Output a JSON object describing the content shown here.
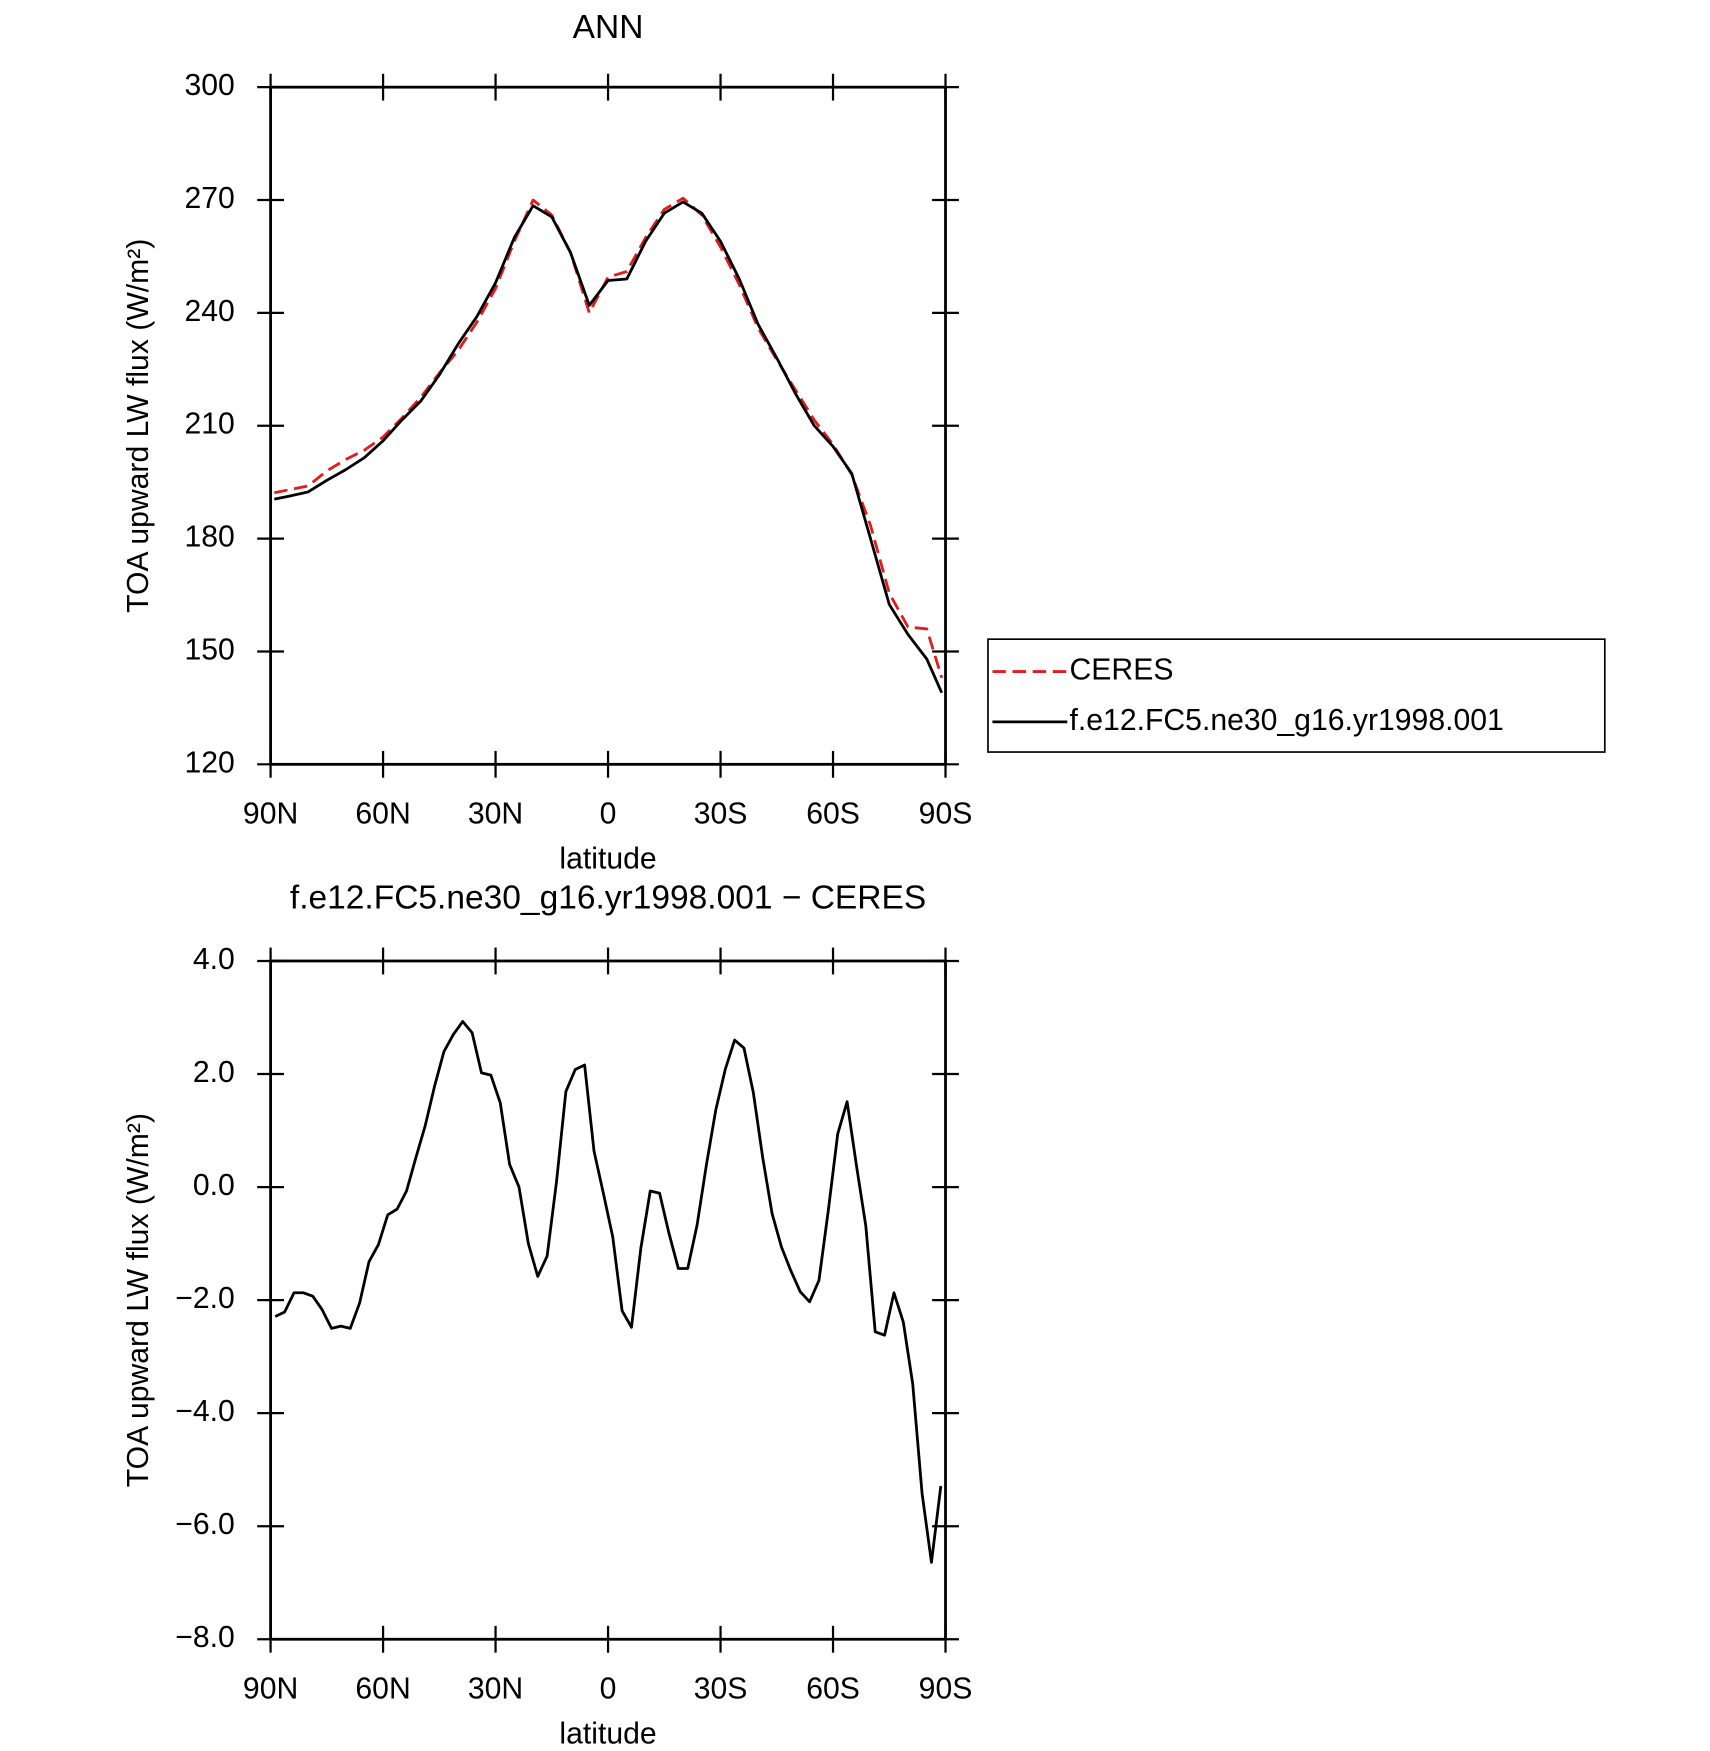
{
  "chart_data": [
    {
      "type": "line",
      "title": "ANN",
      "xlabel": "latitude",
      "ylabel": "TOA upward LW flux (W/m²)",
      "x": [
        89,
        85,
        80,
        75,
        70,
        65,
        60,
        55,
        50,
        45,
        40,
        35,
        30,
        25,
        20,
        15,
        10,
        5,
        0,
        -5,
        -10,
        -15,
        -20,
        -25,
        -30,
        -35,
        -40,
        -45,
        -50,
        -55,
        -60,
        -65,
        -70,
        -75,
        -80,
        -85,
        -89
      ],
      "series": [
        {
          "name": "CERES",
          "color": "#e41a1c",
          "style": "dashed",
          "values": [
            192.2,
            193,
            194,
            198,
            201,
            203.5,
            207,
            212,
            217.5,
            224,
            230,
            237.5,
            246.5,
            259,
            270,
            266,
            256,
            240,
            249.5,
            251,
            260,
            267.5,
            270.5,
            266,
            257.5,
            247.5,
            236,
            227.5,
            219.5,
            211.5,
            205,
            197,
            183.5,
            165.5,
            156.5,
            156,
            143
          ]
        },
        {
          "name": "f.e12.FC5.ne30_g16.yr1998.001",
          "color": "#000000",
          "style": "solid",
          "values": [
            190.5,
            191.3,
            192.4,
            195.5,
            198.3,
            201.5,
            206,
            211.5,
            216.5,
            223.5,
            231.7,
            239,
            248,
            260,
            268.5,
            265.5,
            256,
            242,
            248.6,
            249,
            259,
            266.5,
            269.5,
            266.5,
            259,
            249,
            237,
            228,
            218.5,
            210,
            204.5,
            197.3,
            180,
            162.5,
            154.5,
            148,
            139
          ]
        }
      ],
      "xlim": [
        90,
        -90
      ],
      "xticks": [
        {
          "value": 90,
          "label": "90N"
        },
        {
          "value": 60,
          "label": "60N"
        },
        {
          "value": 30,
          "label": "30N"
        },
        0,
        {
          "value": -30,
          "label": "30S"
        },
        {
          "value": -60,
          "label": "60S"
        },
        {
          "value": -90,
          "label": "90S"
        }
      ],
      "ylim": [
        120,
        300
      ],
      "yticks": [
        120,
        150,
        180,
        210,
        240,
        270,
        300
      ],
      "legend": "right"
    },
    {
      "type": "line",
      "title": "f.e12.FC5.ne30_g16.yr1998.001 − CERES",
      "xlabel": "latitude",
      "ylabel": "TOA upward LW flux (W/m²)",
      "x": [
        88.75,
        86.25,
        83.75,
        81.25,
        78.75,
        76.25,
        73.75,
        71.25,
        68.75,
        66.25,
        63.75,
        61.25,
        58.75,
        56.25,
        53.75,
        51.25,
        48.75,
        46.25,
        43.75,
        41.25,
        38.75,
        36.25,
        33.75,
        31.25,
        28.75,
        26.25,
        23.75,
        21.25,
        18.75,
        16.25,
        13.75,
        11.25,
        8.75,
        6.25,
        3.75,
        1.25,
        -1.25,
        -3.75,
        -6.25,
        -8.75,
        -11.25,
        -13.75,
        -16.25,
        -18.75,
        -21.25,
        -23.75,
        -26.25,
        -28.75,
        -31.25,
        -33.75,
        -36.25,
        -38.75,
        -41.25,
        -43.75,
        -46.25,
        -48.75,
        -51.25,
        -53.75,
        -56.25,
        -58.75,
        -61.25,
        -63.75,
        -66.25,
        -68.75,
        -71.25,
        -73.75,
        -76.25,
        -78.75,
        -81.25,
        -83.75,
        -86.25,
        -88.75
      ],
      "values": [
        -2.29,
        -2.21,
        -1.87,
        -1.87,
        -1.93,
        -2.17,
        -2.5,
        -2.46,
        -2.5,
        -2.05,
        -1.32,
        -1.02,
        -0.49,
        -0.39,
        -0.07,
        0.52,
        1.09,
        1.79,
        2.4,
        2.7,
        2.93,
        2.73,
        2.02,
        1.98,
        1.49,
        0.4,
        0.0,
        -1.0,
        -1.58,
        -1.22,
        0.09,
        1.69,
        2.08,
        2.16,
        0.64,
        -0.11,
        -0.88,
        -2.19,
        -2.48,
        -1.08,
        -0.07,
        -0.11,
        -0.82,
        -1.44,
        -1.44,
        -0.67,
        0.4,
        1.37,
        2.08,
        2.6,
        2.46,
        1.67,
        0.52,
        -0.47,
        -1.06,
        -1.48,
        -1.85,
        -2.03,
        -1.65,
        -0.41,
        0.94,
        1.51,
        0.38,
        -0.69,
        -2.56,
        -2.62,
        -1.87,
        -2.39,
        -3.48,
        -5.42,
        -6.64,
        -5.29
      ],
      "color": "#000000",
      "xlim": [
        90,
        -90
      ],
      "xticks": [
        {
          "value": 90,
          "label": "90N"
        },
        {
          "value": 60,
          "label": "60N"
        },
        {
          "value": 30,
          "label": "30N"
        },
        0,
        {
          "value": -30,
          "label": "30S"
        },
        {
          "value": -60,
          "label": "60S"
        },
        {
          "value": -90,
          "label": "90S"
        }
      ],
      "ylim": [
        -8,
        4
      ],
      "yticks": [
        {
          "value": -8,
          "label": "−8.0"
        },
        {
          "value": -6,
          "label": "−6.0"
        },
        {
          "value": -4,
          "label": "−4.0"
        },
        {
          "value": -2,
          "label": "−2.0"
        },
        {
          "value": 0,
          "label": "0.0"
        },
        {
          "value": 2,
          "label": "2.0"
        },
        {
          "value": 4,
          "label": "4.0"
        }
      ]
    }
  ]
}
